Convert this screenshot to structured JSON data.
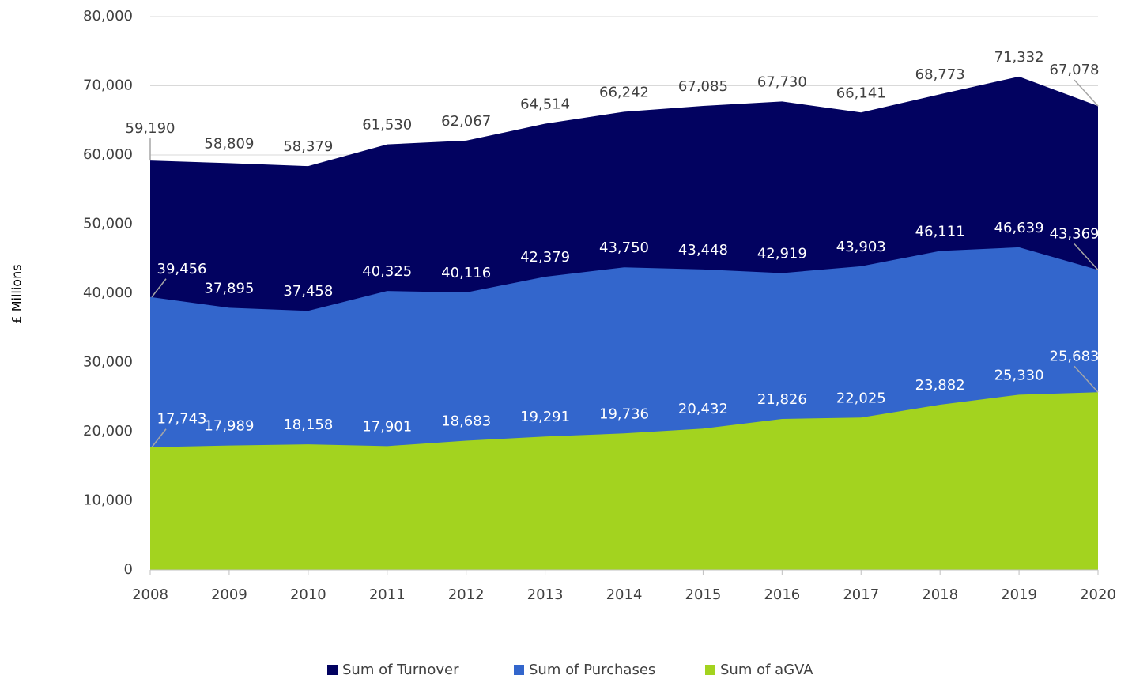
{
  "chart_data": {
    "type": "area",
    "y_label": "£ Millions",
    "categories": [
      "2008",
      "2009",
      "2010",
      "2011",
      "2012",
      "2013",
      "2014",
      "2015",
      "2016",
      "2017",
      "2018",
      "2019",
      "2020"
    ],
    "series": [
      {
        "name": "Sum of Turnover",
        "color": "#020260",
        "values": [
          59190,
          58809,
          58379,
          61530,
          62067,
          64514,
          66242,
          67085,
          67730,
          66141,
          68773,
          71332,
          67078
        ],
        "value_labels": [
          "59,190",
          "58,809",
          "58,379",
          "61,530",
          "62,067",
          "64,514",
          "66,242",
          "67,085",
          "67,730",
          "66,141",
          "68,773",
          "71,332",
          "67,078"
        ]
      },
      {
        "name": "Sum of Purchases",
        "color": "#3366cc",
        "values": [
          39456,
          37895,
          37458,
          40325,
          40116,
          42379,
          43750,
          43448,
          42919,
          43903,
          46111,
          46639,
          43369
        ],
        "value_labels": [
          "39,456",
          "37,895",
          "37,458",
          "40,325",
          "40,116",
          "42,379",
          "43,750",
          "43,448",
          "42,919",
          "43,903",
          "46,111",
          "46,639",
          "43,369"
        ]
      },
      {
        "name": "Sum of aGVA",
        "color": "#a3d31f",
        "values": [
          17743,
          17989,
          18158,
          17901,
          18683,
          19291,
          19736,
          20432,
          21826,
          22025,
          23882,
          25330,
          25683
        ],
        "value_labels": [
          "17,743",
          "17,989",
          "18,158",
          "17,901",
          "18,683",
          "19,291",
          "19,736",
          "20,432",
          "21,826",
          "22,025",
          "23,882",
          "25,330",
          "25,683"
        ]
      }
    ],
    "ylim": [
      0,
      80000
    ],
    "yticks": [
      0,
      {
        "value": 10000,
        "label": "10,000"
      },
      {
        "value": 20000,
        "label": "20,000"
      },
      {
        "value": 30000,
        "label": "30,000"
      },
      {
        "value": 40000,
        "label": "40,000"
      },
      {
        "value": 50000,
        "label": "50,000"
      },
      {
        "value": 60000,
        "label": "60,000"
      },
      {
        "value": 70000,
        "label": "70,000"
      },
      {
        "value": 80000,
        "label": "80,000"
      }
    ],
    "grid": true,
    "legend": "bottom"
  }
}
